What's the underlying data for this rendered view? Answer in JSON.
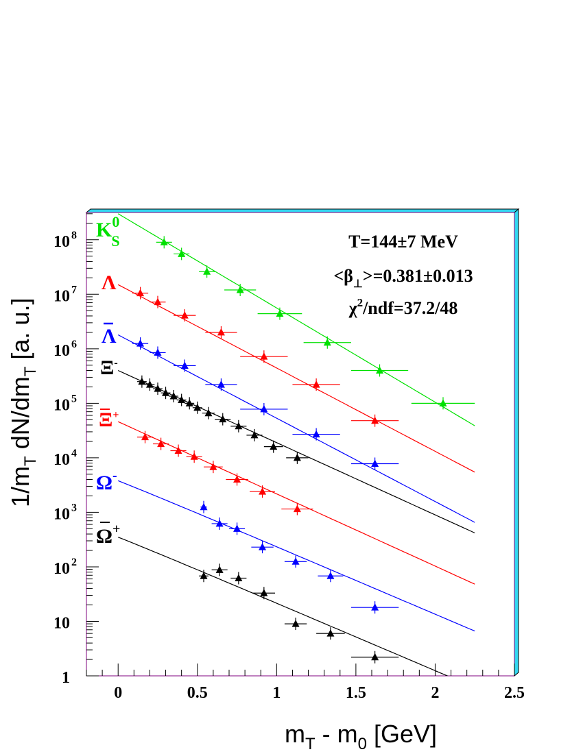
{
  "chart_data": {
    "type": "scatter",
    "title": "",
    "xlabel": "m_T - m_0 [GeV]",
    "ylabel": "1/m_T dN/dm_T [a. u.]",
    "xlim": [
      -0.2,
      2.5
    ],
    "ylim_log10": [
      0,
      8.5
    ],
    "yscale": "log",
    "grid": false,
    "x_ticks": [
      "0",
      "0.5",
      "1",
      "1.5",
      "2",
      "2.5"
    ],
    "y_ticks": [
      "1",
      "10",
      "10",
      "10",
      "10",
      "10",
      "10",
      "10",
      "10"
    ],
    "y_tick_exponents": [
      "",
      "",
      "2",
      "3",
      "4",
      "5",
      "6",
      "7",
      "8"
    ],
    "annotations": {
      "temperature": "T=144±7 MeV",
      "beta": "<β⊥>=0.381±0.013",
      "chi2": "χ²/ndf=37.2/48"
    },
    "series": [
      {
        "name": "K0S",
        "color": "#00e000",
        "fit": {
          "y0": 300000000.0,
          "slope": -3.98,
          "xmin": 0.0,
          "xmax": 2.25
        },
        "points": [
          {
            "x": 0.29,
            "y": 90000000.0,
            "xerr": 0.05
          },
          {
            "x": 0.4,
            "y": 55000000.0,
            "xerr": 0.05
          },
          {
            "x": 0.56,
            "y": 26000000.0,
            "xerr": 0.05
          },
          {
            "x": 0.77,
            "y": 12000000.0,
            "xerr": 0.1
          },
          {
            "x": 1.02,
            "y": 4400000.0,
            "xerr": 0.14
          },
          {
            "x": 1.32,
            "y": 1300000.0,
            "xerr": 0.15
          },
          {
            "x": 1.65,
            "y": 400000.0,
            "xerr": 0.18
          },
          {
            "x": 2.05,
            "y": 100000.0,
            "xerr": 0.2
          }
        ]
      },
      {
        "name": "Λ",
        "color": "#ff0000",
        "fit": {
          "y0": 15000000.0,
          "slope": -3.52,
          "xmin": 0.0,
          "xmax": 2.25
        },
        "points": [
          {
            "x": 0.14,
            "y": 10500000.0,
            "xerr": 0.05
          },
          {
            "x": 0.25,
            "y": 7200000.0,
            "xerr": 0.05
          },
          {
            "x": 0.42,
            "y": 4100000.0,
            "xerr": 0.07
          },
          {
            "x": 0.65,
            "y": 2000000.0,
            "xerr": 0.1
          },
          {
            "x": 0.92,
            "y": 720000.0,
            "xerr": 0.15
          },
          {
            "x": 1.25,
            "y": 220000.0,
            "xerr": 0.15
          },
          {
            "x": 1.62,
            "y": 48000.0,
            "xerr": 0.15
          }
        ]
      },
      {
        "name": "Λ̄",
        "color": "#0000ff",
        "fit": {
          "y0": 1800000.0,
          "slope": -3.52,
          "xmin": 0.0,
          "xmax": 2.25
        },
        "points": [
          {
            "x": 0.14,
            "y": 1250000.0,
            "xerr": 0.05
          },
          {
            "x": 0.25,
            "y": 850000.0,
            "xerr": 0.05
          },
          {
            "x": 0.42,
            "y": 490000.0,
            "xerr": 0.07
          },
          {
            "x": 0.65,
            "y": 220000.0,
            "xerr": 0.1
          },
          {
            "x": 0.92,
            "y": 78000.0,
            "xerr": 0.15
          },
          {
            "x": 1.25,
            "y": 27000.0,
            "xerr": 0.15
          },
          {
            "x": 1.62,
            "y": 7800.0,
            "xerr": 0.15
          }
        ]
      },
      {
        "name": "Ξ-",
        "color": "#000000",
        "fit": {
          "y0": 400000.0,
          "slope": -3.05,
          "xmin": 0.0,
          "xmax": 2.25
        },
        "points": [
          {
            "x": 0.15,
            "y": 250000.0,
            "xerr": 0.03
          },
          {
            "x": 0.2,
            "y": 220000.0,
            "xerr": 0.03
          },
          {
            "x": 0.25,
            "y": 185000.0,
            "xerr": 0.03
          },
          {
            "x": 0.3,
            "y": 155000.0,
            "xerr": 0.03
          },
          {
            "x": 0.35,
            "y": 135000.0,
            "xerr": 0.03
          },
          {
            "x": 0.4,
            "y": 115000.0,
            "xerr": 0.03
          },
          {
            "x": 0.45,
            "y": 100000.0,
            "xerr": 0.03
          },
          {
            "x": 0.5,
            "y": 83000.0,
            "xerr": 0.03
          },
          {
            "x": 0.57,
            "y": 66000.0,
            "xerr": 0.04
          },
          {
            "x": 0.66,
            "y": 51000.0,
            "xerr": 0.05
          },
          {
            "x": 0.76,
            "y": 38000.0,
            "xerr": 0.05
          },
          {
            "x": 0.86,
            "y": 26000.0,
            "xerr": 0.05
          },
          {
            "x": 0.98,
            "y": 16000.0,
            "xerr": 0.06
          },
          {
            "x": 1.13,
            "y": 10000.0,
            "xerr": 0.07
          }
        ]
      },
      {
        "name": "Ξ̄+",
        "color": "#ff0000",
        "fit": {
          "y0": 46000.0,
          "slope": -3.05,
          "xmin": 0.0,
          "xmax": 2.25
        },
        "points": [
          {
            "x": 0.17,
            "y": 24000.0,
            "xerr": 0.05
          },
          {
            "x": 0.27,
            "y": 18000.0,
            "xerr": 0.05
          },
          {
            "x": 0.38,
            "y": 13500.0,
            "xerr": 0.05
          },
          {
            "x": 0.48,
            "y": 10500.0,
            "xerr": 0.05
          },
          {
            "x": 0.6,
            "y": 6800.0,
            "xerr": 0.06
          },
          {
            "x": 0.75,
            "y": 4000.0,
            "xerr": 0.07
          },
          {
            "x": 0.91,
            "y": 2400.0,
            "xerr": 0.08
          },
          {
            "x": 1.13,
            "y": 1150.0,
            "xerr": 0.1
          }
        ]
      },
      {
        "name": "Ω-",
        "color": "#0000ff",
        "fit": {
          "y0": 3800.0,
          "slope": -2.85,
          "xmin": 0.0,
          "xmax": 2.25,
          "bend": 0.18
        },
        "points": [
          {
            "x": 0.54,
            "y": 1250.0,
            "xerr": 0.02
          },
          {
            "x": 0.64,
            "y": 620,
            "xerr": 0.05
          },
          {
            "x": 0.75,
            "y": 500,
            "xerr": 0.05
          },
          {
            "x": 0.91,
            "y": 230,
            "xerr": 0.07
          },
          {
            "x": 1.12,
            "y": 125,
            "xerr": 0.07
          },
          {
            "x": 1.34,
            "y": 68,
            "xerr": 0.08
          },
          {
            "x": 1.62,
            "y": 18,
            "xerr": 0.15
          }
        ]
      },
      {
        "name": "Ω̄+",
        "color": "#000000",
        "fit": {
          "y0": 350.0,
          "slope": -2.85,
          "xmin": 0.0,
          "xmax": 2.25,
          "bend": 0.18
        },
        "points": [
          {
            "x": 0.54,
            "y": 68,
            "xerr": 0.03
          },
          {
            "x": 0.64,
            "y": 88,
            "xerr": 0.05
          },
          {
            "x": 0.76,
            "y": 62,
            "xerr": 0.05
          },
          {
            "x": 0.92,
            "y": 33,
            "xerr": 0.07
          },
          {
            "x": 1.12,
            "y": 9,
            "xerr": 0.07
          },
          {
            "x": 1.34,
            "y": 6,
            "xerr": 0.09
          },
          {
            "x": 1.62,
            "y": 2.2,
            "xerr": 0.15
          }
        ]
      }
    ]
  }
}
